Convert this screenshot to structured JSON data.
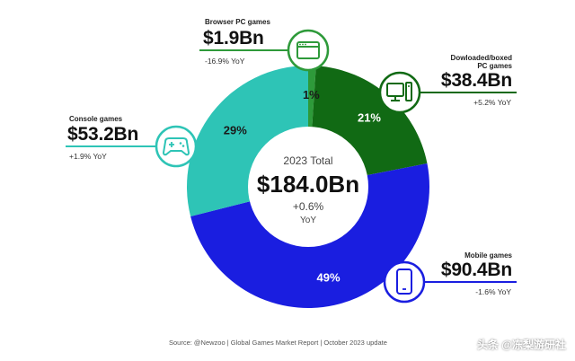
{
  "chart_data": {
    "type": "pie",
    "title": "",
    "center": {
      "caption": "2023 Total",
      "total": "$184.0Bn",
      "change": "+0.6%",
      "change_unit": "YoY"
    },
    "categories": [
      "Browser PC games",
      "Dowloaded/boxed PC games",
      "Mobile games",
      "Console games"
    ],
    "values": [
      1.9,
      38.4,
      90.4,
      53.2
    ],
    "percent_labels": [
      "1%",
      "21%",
      "49%",
      "29%"
    ],
    "value_labels": [
      "$1.9Bn",
      "$38.4Bn",
      "$90.4Bn",
      "$53.2Bn"
    ],
    "yoy": [
      "-16.9% YoY",
      "+5.2% YoY",
      "-1.6% YoY",
      "+1.9% YoY"
    ],
    "colors": [
      "#2e9a3a",
      "#116a14",
      "#1a1ee0",
      "#2ec4b6"
    ]
  },
  "labels": {
    "browser": {
      "title": "Browser PC games",
      "value": "$1.9Bn",
      "yoy": "-16.9% YoY",
      "icon": "browser-window-icon"
    },
    "pc": {
      "title_line1": "Dowloaded/boxed",
      "title_line2": "PC games",
      "value": "$38.4Bn",
      "yoy": "+5.2% YoY",
      "icon": "desktop-pc-icon"
    },
    "mobile": {
      "title": "Mobile games",
      "value": "$90.4Bn",
      "yoy": "-1.6% YoY",
      "icon": "smartphone-icon"
    },
    "console": {
      "title": "Console games",
      "value": "$53.2Bn",
      "yoy": "+1.9% YoY",
      "icon": "gamepad-icon"
    }
  },
  "source": "Source: @Newzoo | Global Games Market Report | October 2023 update",
  "watermark": "头条 @冻梨游研社"
}
